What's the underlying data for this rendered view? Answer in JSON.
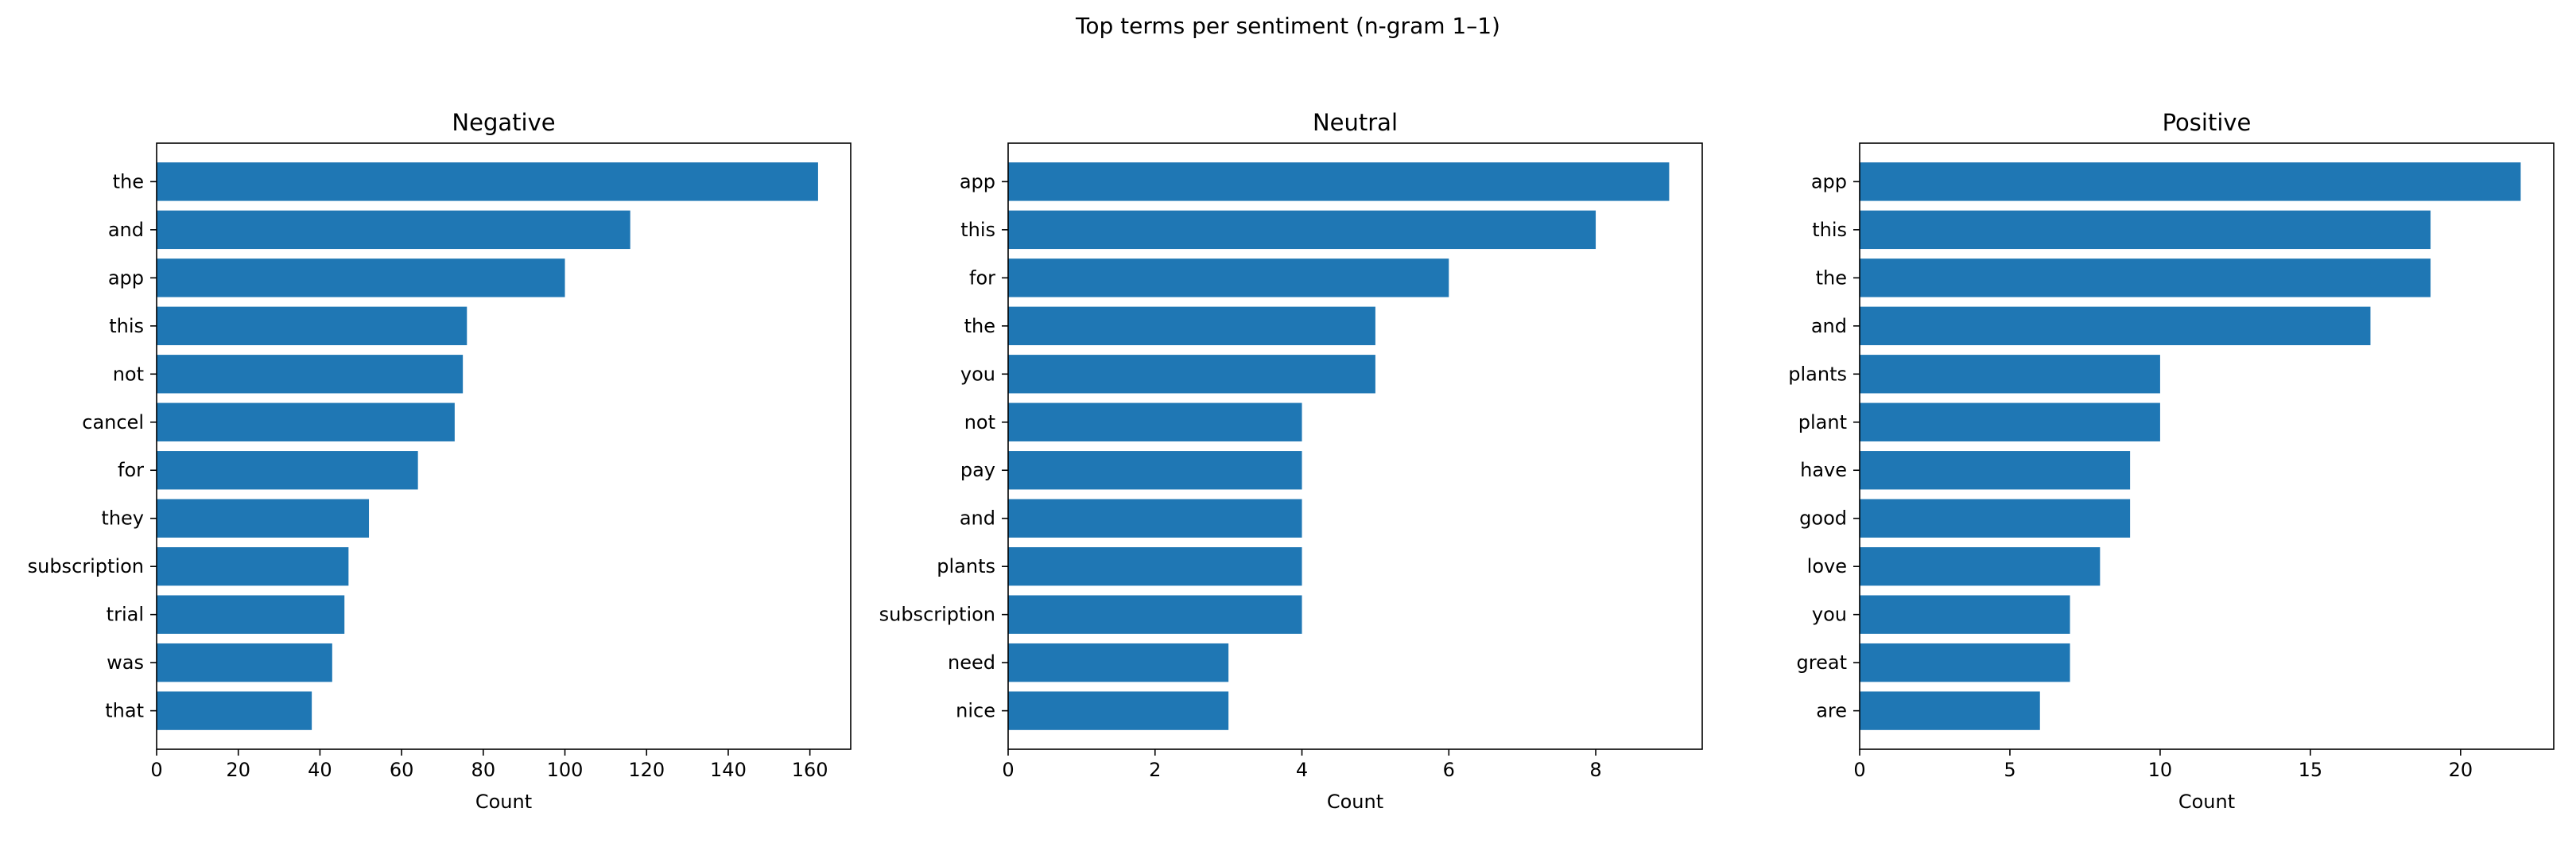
{
  "figure": {
    "suptitle": "Top terms per sentiment (n-gram 1–1)"
  },
  "chart_data": [
    {
      "type": "bar",
      "orientation": "horizontal",
      "title": "Negative",
      "xlabel": "Count",
      "ylabel": "",
      "categories": [
        "the",
        "and",
        "app",
        "this",
        "not",
        "cancel",
        "for",
        "they",
        "subscription",
        "trial",
        "was",
        "that"
      ],
      "values": [
        162,
        116,
        100,
        76,
        75,
        73,
        64,
        52,
        47,
        46,
        43,
        38
      ],
      "xlim": [
        0,
        170
      ],
      "xticks": [
        0,
        20,
        40,
        60,
        80,
        100,
        120,
        140,
        160
      ],
      "bar_color": "#1f77b4",
      "grid": false
    },
    {
      "type": "bar",
      "orientation": "horizontal",
      "title": "Neutral",
      "xlabel": "Count",
      "ylabel": "",
      "categories": [
        "app",
        "this",
        "for",
        "the",
        "you",
        "not",
        "pay",
        "and",
        "plants",
        "subscription",
        "need",
        "nice"
      ],
      "values": [
        9,
        8,
        6,
        5,
        5,
        4,
        4,
        4,
        4,
        4,
        3,
        3
      ],
      "xlim": [
        0,
        9.45
      ],
      "xticks": [
        0,
        2,
        4,
        6,
        8
      ],
      "bar_color": "#1f77b4",
      "grid": false
    },
    {
      "type": "bar",
      "orientation": "horizontal",
      "title": "Positive",
      "xlabel": "Count",
      "ylabel": "",
      "categories": [
        "app",
        "this",
        "the",
        "and",
        "plants",
        "plant",
        "have",
        "good",
        "love",
        "you",
        "great",
        "are"
      ],
      "values": [
        22,
        19,
        19,
        17,
        10,
        10,
        9,
        9,
        8,
        7,
        7,
        6
      ],
      "xlim": [
        0,
        23.1
      ],
      "xticks": [
        0,
        5,
        10,
        15,
        20
      ],
      "bar_color": "#1f77b4",
      "grid": false
    }
  ]
}
